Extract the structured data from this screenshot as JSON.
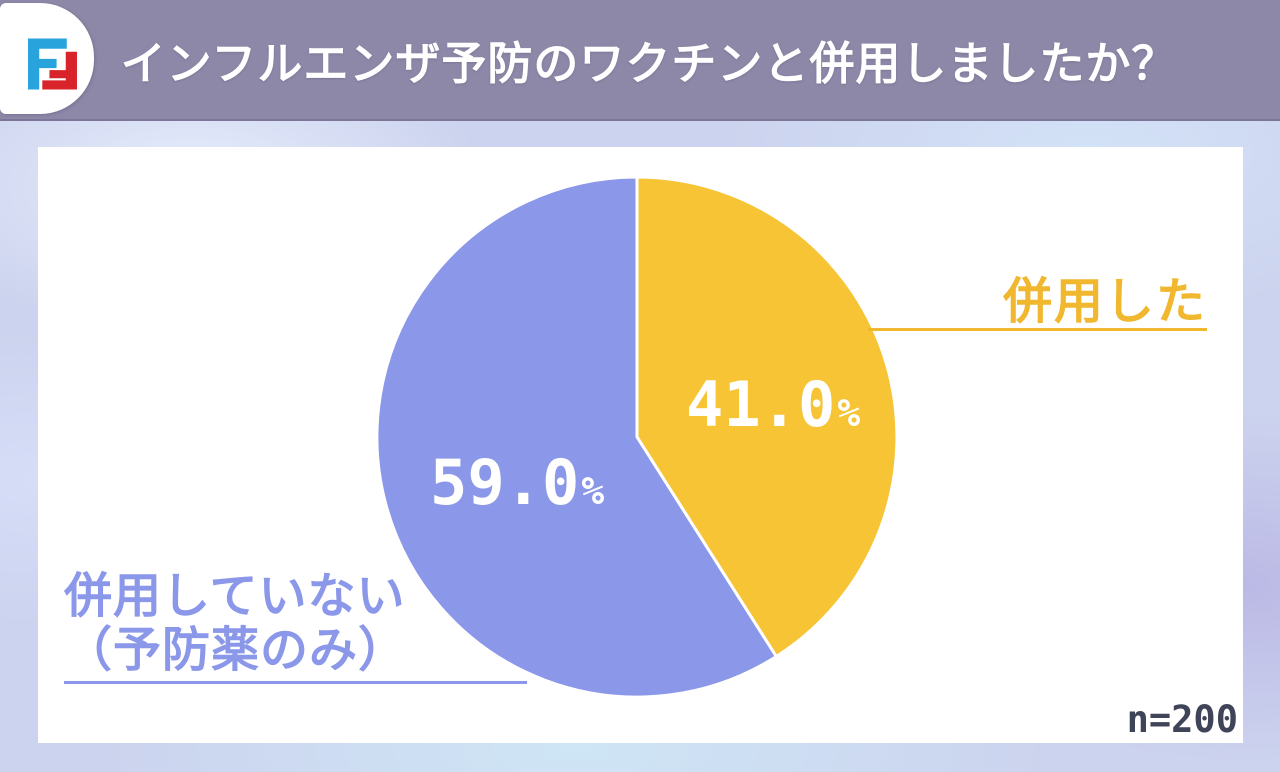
{
  "header": {
    "title": "インフルエンザ予防のワクチンと併用しましたか？",
    "bg_color": "#8e88a8",
    "logo": {
      "name": "fg-monogram-logo",
      "blue": "#29a3dc",
      "red": "#d8232a"
    }
  },
  "chart_data": {
    "type": "pie",
    "title": "インフルエンザ予防のワクチンと併用しましたか？",
    "direction": "clockwise",
    "start_angle": "12-oclock",
    "legend_position": "callout-labels",
    "sample_size_label": "n=200",
    "slices": [
      {
        "label": "併用した",
        "label_line1": "併用した",
        "label_line2": "",
        "value": 41.0,
        "display": "41.0",
        "unit": "%",
        "color": "#f6c435",
        "label_color": "#f0b72f"
      },
      {
        "label": "併用していない（予防薬のみ）",
        "label_line1": "併用していない",
        "label_line2": "（予防薬のみ）",
        "value": 59.0,
        "display": "59.0",
        "unit": "%",
        "color": "#8b97e9",
        "label_color": "#8b97e9"
      }
    ]
  }
}
